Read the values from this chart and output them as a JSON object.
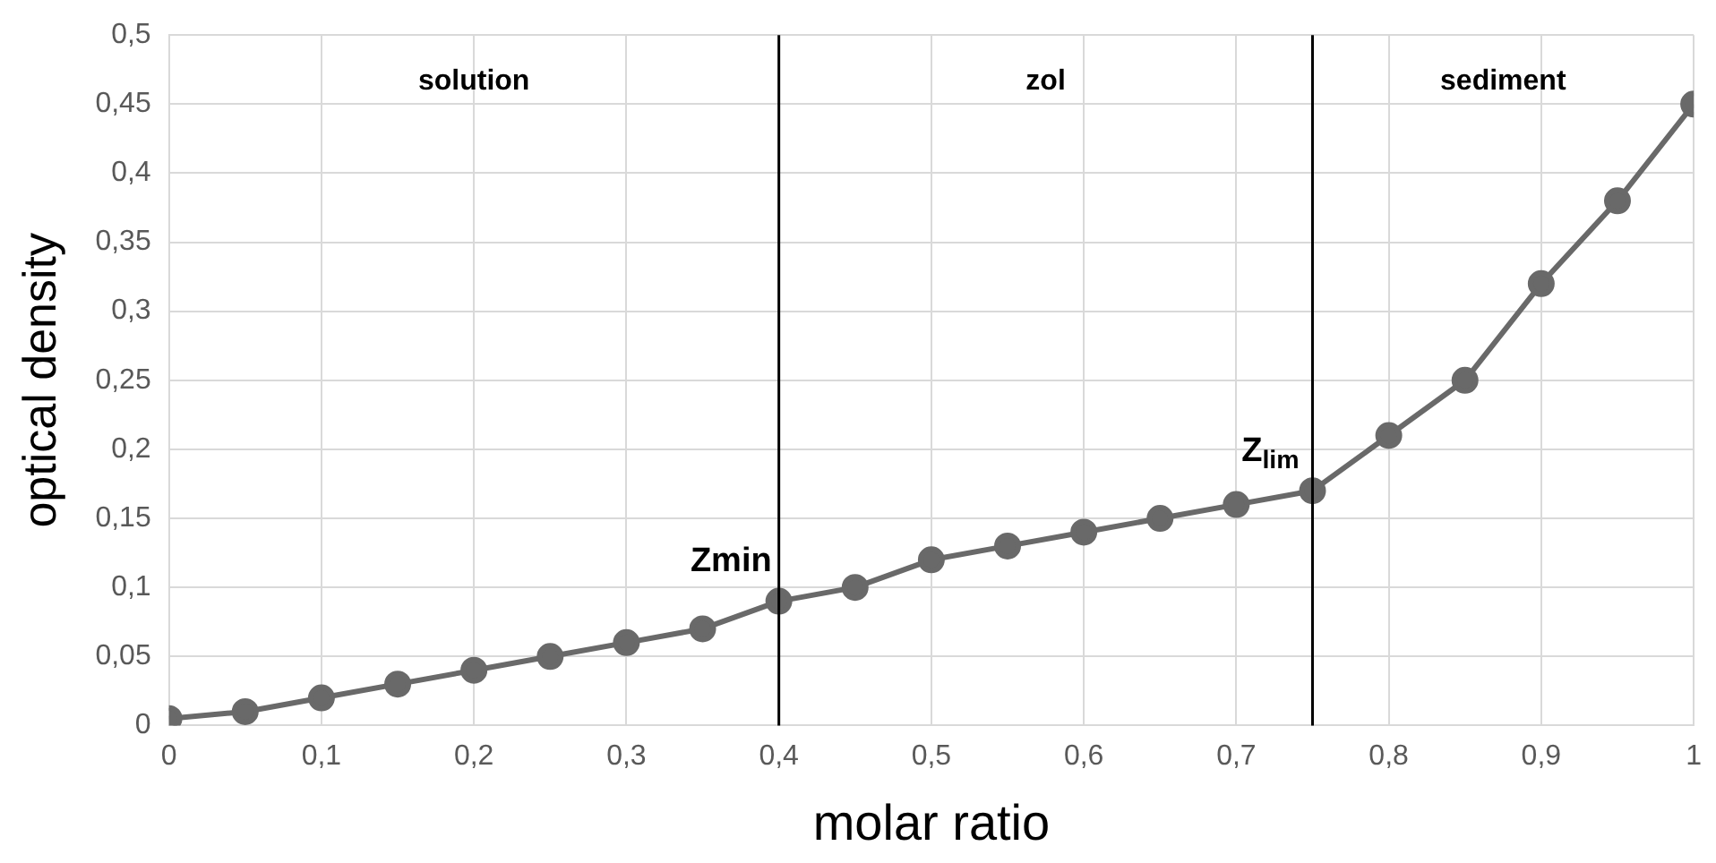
{
  "chart_data": {
    "type": "line",
    "xlabel": "molar ratio",
    "ylabel": "optical density",
    "x": [
      0,
      0.05,
      0.1,
      0.15,
      0.2,
      0.25,
      0.3,
      0.35,
      0.4,
      0.45,
      0.5,
      0.55,
      0.6,
      0.65,
      0.7,
      0.75,
      0.8,
      0.85,
      0.9,
      0.95,
      1
    ],
    "series": [
      {
        "color": "#696969",
        "values": [
          0.005,
          0.01,
          0.02,
          0.03,
          0.04,
          0.05,
          0.06,
          0.07,
          0.09,
          0.1,
          0.12,
          0.13,
          0.14,
          0.15,
          0.16,
          0.17,
          0.21,
          0.25,
          0.32,
          0.38,
          0.45
        ]
      }
    ],
    "xlim": [
      0,
      1
    ],
    "ylim": [
      0,
      0.5
    ],
    "xticks": [
      0,
      {
        "value": 0.1,
        "label": "0,1"
      },
      {
        "value": 0.2,
        "label": "0,2"
      },
      {
        "value": 0.3,
        "label": "0,3"
      },
      {
        "value": 0.4,
        "label": "0,4"
      },
      {
        "value": 0.5,
        "label": "0,5"
      },
      {
        "value": 0.6,
        "label": "0,6"
      },
      {
        "value": 0.7,
        "label": "0,7"
      },
      {
        "value": 0.8,
        "label": "0,8"
      },
      {
        "value": 0.9,
        "label": "0,9"
      },
      1
    ],
    "yticks": [
      0,
      {
        "value": 0.05,
        "label": "0,05"
      },
      {
        "value": 0.1,
        "label": "0,1"
      },
      {
        "value": 0.15,
        "label": "0,15"
      },
      {
        "value": 0.2,
        "label": "0,2"
      },
      {
        "value": 0.25,
        "label": "0,25"
      },
      {
        "value": 0.3,
        "label": "0,3"
      },
      {
        "value": 0.35,
        "label": "0,35"
      },
      {
        "value": 0.4,
        "label": "0,4"
      },
      {
        "value": 0.45,
        "label": "0,45"
      },
      {
        "value": 0.5,
        "label": "0,5"
      }
    ],
    "ref_lines": [
      {
        "axis": "x",
        "value": 0.4,
        "color": "#000000"
      },
      {
        "axis": "x",
        "value": 0.75,
        "color": "#000000"
      }
    ],
    "annotations": [
      "solution",
      "zol",
      "sediment",
      {
        "text": "Zmin",
        "x": 0.4,
        "y": 0.09
      },
      {
        "text": "Z$_{lim}$",
        "x": 0.75,
        "y": 0.17
      }
    ],
    "grid": true,
    "marker": "circle",
    "line_style": "solid"
  }
}
